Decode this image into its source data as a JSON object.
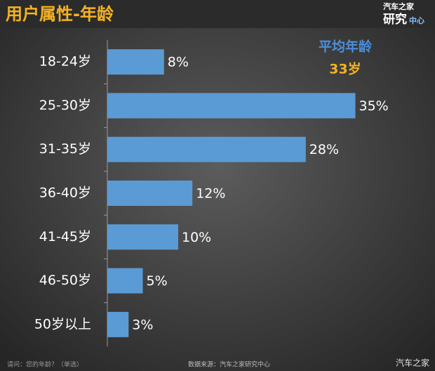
{
  "chart_data": {
    "type": "bar",
    "orientation": "horizontal",
    "title": "用户属性-年龄",
    "categories": [
      "18-24岁",
      "25-30岁",
      "31-35岁",
      "36-40岁",
      "41-45岁",
      "46-50岁",
      "50岁以上"
    ],
    "values": [
      8,
      35,
      28,
      12,
      10,
      5,
      3
    ],
    "value_labels": [
      "8%",
      "35%",
      "28%",
      "12%",
      "10%",
      "5%",
      "3%"
    ],
    "color": "#5b9bd5",
    "annotations": [
      "平均年龄",
      "33岁"
    ]
  },
  "logo": {
    "brand": "汽车之家",
    "dept": "研究",
    "center": "中心"
  },
  "footer": {
    "question": "请问：您的年龄？（单选）",
    "source": "数据来源：汽车之家研究中心"
  },
  "watermark": "汽车之家"
}
